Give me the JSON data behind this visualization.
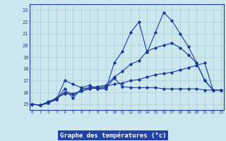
{
  "title": "",
  "xlabel": "Graphe des températures (°c)",
  "bg_color": "#cce8ee",
  "line_color": "#1a3a9c",
  "grid_color": "#aaccd6",
  "border_color": "#1a3a9c",
  "xlabel_bg": "#2244aa",
  "xlabel_color": "#ffffff",
  "x_ticks": [
    0,
    1,
    2,
    3,
    4,
    5,
    6,
    7,
    8,
    9,
    10,
    11,
    12,
    13,
    14,
    15,
    16,
    17,
    18,
    19,
    20,
    21,
    22,
    23
  ],
  "y_ticks": [
    15,
    16,
    17,
    18,
    19,
    20,
    21,
    22,
    23
  ],
  "xlim": [
    -0.3,
    23.3
  ],
  "ylim": [
    14.5,
    23.5
  ],
  "series": [
    [
      15.0,
      14.9,
      15.1,
      15.4,
      16.3,
      15.5,
      16.3,
      16.4,
      16.3,
      16.3,
      18.5,
      19.5,
      21.1,
      22.0,
      19.4,
      21.1,
      22.8,
      22.1,
      21.0,
      19.9,
      18.5,
      17.0,
      16.2,
      16.2
    ],
    [
      15.0,
      14.9,
      15.1,
      15.4,
      17.0,
      16.7,
      16.4,
      16.6,
      16.3,
      16.4,
      17.2,
      16.5,
      16.4,
      16.4,
      16.4,
      16.4,
      16.3,
      16.3,
      16.3,
      16.3,
      16.3,
      16.2,
      16.2,
      16.2
    ],
    [
      15.0,
      14.9,
      15.2,
      15.5,
      15.9,
      15.8,
      16.1,
      16.3,
      16.4,
      16.5,
      16.7,
      16.8,
      17.0,
      17.1,
      17.3,
      17.5,
      17.6,
      17.7,
      17.9,
      18.1,
      18.3,
      18.5,
      16.2,
      16.2
    ],
    [
      15.0,
      14.9,
      15.2,
      15.5,
      16.0,
      15.9,
      16.1,
      16.4,
      16.5,
      16.6,
      17.3,
      17.8,
      18.4,
      18.7,
      19.5,
      19.8,
      20.0,
      20.2,
      19.8,
      19.2,
      18.5,
      17.0,
      16.2,
      16.2
    ]
  ]
}
